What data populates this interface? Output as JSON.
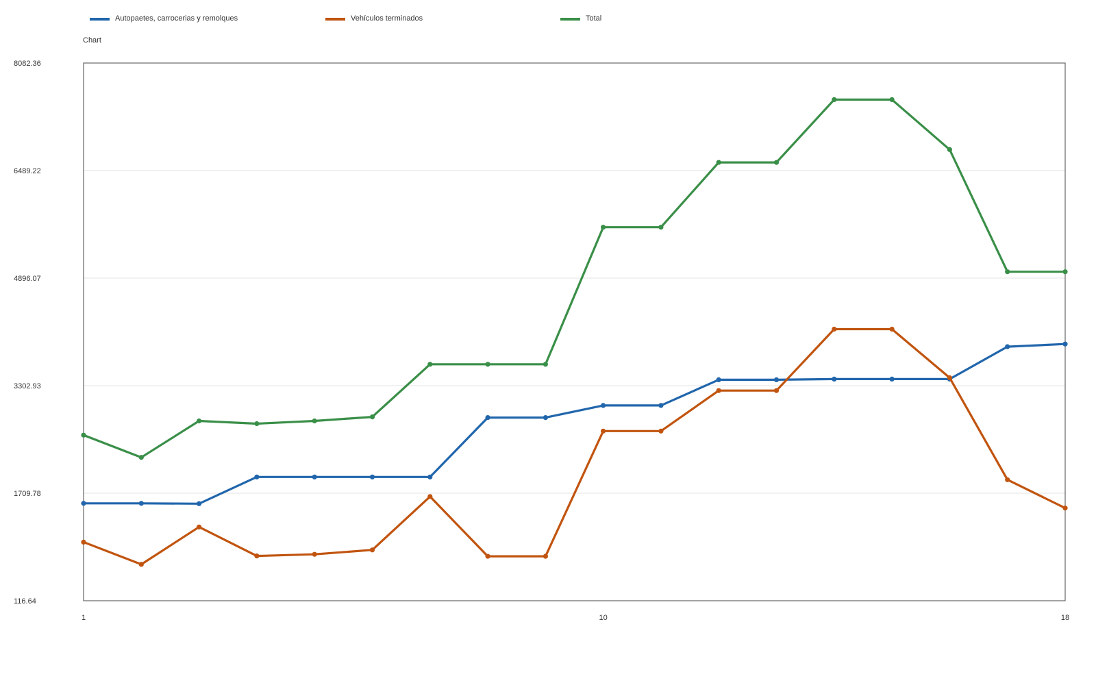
{
  "chart_data": {
    "type": "line",
    "title": "Chart",
    "xlabel": "",
    "ylabel": "",
    "x": [
      1,
      2,
      3,
      4,
      5,
      6,
      7,
      8,
      9,
      10,
      11,
      12,
      13,
      14,
      15,
      16,
      17,
      18
    ],
    "x_tick_labels": [
      {
        "x": 1,
        "label": "1"
      },
      {
        "x": 10,
        "label": "10"
      },
      {
        "x": 18,
        "label": "18"
      }
    ],
    "xlim": [
      1,
      18
    ],
    "ylim": [
      116.64,
      8082.36
    ],
    "y_ticks": [
      116.64,
      1709.78,
      3302.93,
      4896.07,
      6489.22,
      8082.36
    ],
    "y_tick_labels": [
      "116.64",
      "1709.78",
      "3302.93",
      "4896.07",
      "6489.22",
      "8082.36"
    ],
    "grid": true,
    "legend": "top",
    "series": [
      {
        "name": "Autopaetes, carrocerias y remolques",
        "color": "#2166ac",
        "values": [
          1560,
          1560,
          1555,
          1950,
          1950,
          1950,
          1950,
          2830,
          2830,
          3010,
          3010,
          3390,
          3390,
          3400,
          3400,
          3400,
          3880,
          3920
        ]
      },
      {
        "name": "Vehículos terminados",
        "color": "#c1540f",
        "values": [
          985,
          655,
          1210,
          780,
          805,
          870,
          1660,
          775,
          775,
          2630,
          2630,
          3230,
          3230,
          4140,
          4140,
          3420,
          1910,
          1490
        ]
      },
      {
        "name": "Total",
        "color": "#3a8f48",
        "values": [
          2570,
          2240,
          2780,
          2740,
          2780,
          2840,
          3620,
          3620,
          3620,
          5650,
          5650,
          6610,
          6610,
          7540,
          7540,
          6800,
          4990,
          4990
        ]
      }
    ]
  }
}
